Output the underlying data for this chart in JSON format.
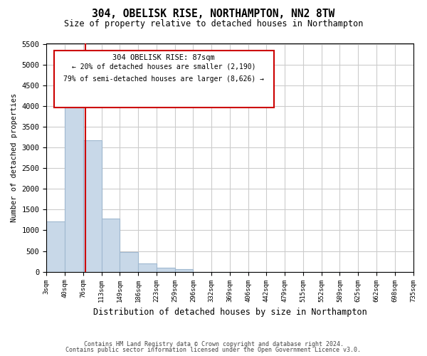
{
  "title": "304, OBELISK RISE, NORTHAMPTON, NN2 8TW",
  "subtitle": "Size of property relative to detached houses in Northampton",
  "xlabel": "Distribution of detached houses by size in Northampton",
  "ylabel": "Number of detached properties",
  "bar_color": "#c8d8e8",
  "bar_edgecolor": "#a0b8d0",
  "grid_color": "#cccccc",
  "background_color": "#ffffff",
  "annotation_box_color": "#cc0000",
  "redline_color": "#cc0000",
  "property_label": "304 OBELISK RISE: 87sqm",
  "annotation_line1": "← 20% of detached houses are smaller (2,190)",
  "annotation_line2": "79% of semi-detached houses are larger (8,626) →",
  "footer_line1": "Contains HM Land Registry data © Crown copyright and database right 2024.",
  "footer_line2": "Contains public sector information licensed under the Open Government Licence v3.0.",
  "bins": [
    "3sqm",
    "40sqm",
    "76sqm",
    "113sqm",
    "149sqm",
    "186sqm",
    "223sqm",
    "259sqm",
    "296sqm",
    "332sqm",
    "369sqm",
    "406sqm",
    "442sqm",
    "479sqm",
    "515sqm",
    "552sqm",
    "589sqm",
    "625sqm",
    "662sqm",
    "698sqm",
    "735sqm"
  ],
  "values": [
    1220,
    4280,
    3180,
    1280,
    480,
    200,
    100,
    70,
    0,
    0,
    0,
    0,
    0,
    0,
    0,
    0,
    0,
    0,
    0,
    0
  ],
  "ylim": [
    0,
    5500
  ],
  "yticks": [
    0,
    500,
    1000,
    1500,
    2000,
    2500,
    3000,
    3500,
    4000,
    4500,
    5000,
    5500
  ],
  "redline_bin_index": 1.64
}
